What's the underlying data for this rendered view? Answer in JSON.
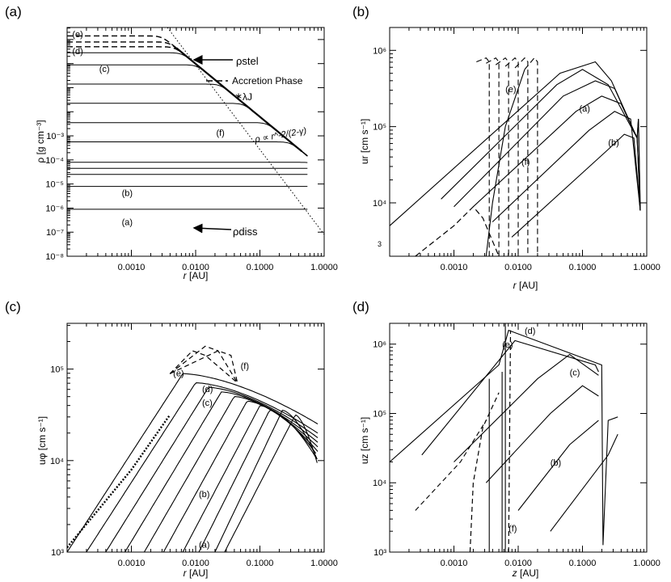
{
  "chart_data": [
    {
      "panel": "(a)",
      "type": "line",
      "xlabel": "r",
      "xunit": "[AU]",
      "ylabel": "ρ",
      "yunit": "[g cm⁻³]",
      "xlog": [
        -4,
        0
      ],
      "ylog": [
        -8,
        1.5
      ],
      "xticks": [
        "0.0010",
        "0.0100",
        "0.1000",
        "1.0000"
      ],
      "yticks": [
        [
          "10⁻⁸",
          -8
        ],
        [
          "10⁻⁷",
          -7
        ],
        [
          "10⁻⁶",
          -6
        ],
        [
          "10⁻⁵",
          -5
        ],
        [
          "10⁻⁴",
          -4
        ],
        [
          "10⁻³",
          -3
        ]
      ],
      "ann": [
        [
          "(e)",
          -3.92,
          1.1
        ],
        [
          "(d)",
          -3.92,
          0.4
        ],
        [
          "(c)",
          -3.5,
          -0.35
        ],
        [
          "(f)",
          -1.68,
          -3.0
        ],
        [
          "(b)",
          -3.15,
          -5.5
        ],
        [
          "(a)",
          -3.15,
          -6.7
        ]
      ],
      "labels": {
        "rho_stel": "ρstel",
        "accretion": "Accretion Phase",
        "lambda_j": "λJ",
        "rho_diss": "ρdiss",
        "powerlaw": "ρ ∝ r^-2/(2-γ)"
      },
      "series": [
        {
          "name": "(e)",
          "style": "dashed",
          "plateau": 1.15
        },
        {
          "name": "",
          "style": "dashed",
          "plateau": 0.9
        },
        {
          "name": "",
          "style": "dashed",
          "plateau": 0.7
        },
        {
          "name": "(d)",
          "style": "solid",
          "plateau": 0.45
        },
        {
          "name": "",
          "style": "solid",
          "plateau": -0.05
        },
        {
          "name": "(c)",
          "style": "solid",
          "plateau": -0.85
        },
        {
          "name": "",
          "style": "solid",
          "plateau": -1.65
        },
        {
          "name": "",
          "style": "solid",
          "plateau": -2.45
        },
        {
          "name": "",
          "style": "solid",
          "plateau": -3.25
        },
        {
          "name": "(b)",
          "style": "solid",
          "plateau": -4.1
        },
        {
          "name": "",
          "style": "solid",
          "plateau": -4.35
        },
        {
          "name": "",
          "style": "solid",
          "plateau": -4.6
        },
        {
          "name": "",
          "style": "solid",
          "plateau": -5.1
        },
        {
          "name": "(a)",
          "style": "solid",
          "plateau": -6.05
        }
      ]
    },
    {
      "panel": "(b)",
      "type": "line",
      "xlabel": "r",
      "xunit": "[AU]",
      "ylabel": "ur",
      "yunit": "[cm s⁻¹]",
      "xlog": [
        -4,
        0
      ],
      "ylog": [
        3.3,
        6.3
      ],
      "xticks": [
        "0.0010",
        "0.0100",
        "0.1000",
        "1.0000"
      ],
      "yticks": [
        [
          "10⁶",
          6
        ],
        [
          "10⁵",
          5
        ],
        [
          "10⁴",
          4
        ]
      ],
      "ymin_label": "3",
      "ann": [
        [
          "(e)",
          -2.2,
          5.45
        ],
        [
          "(f)",
          -1.95,
          4.5
        ],
        [
          "(a)",
          -1.05,
          5.2
        ],
        [
          "(b)",
          -0.6,
          4.75
        ]
      ],
      "series": [
        {
          "x": [
            -4,
            -1.35,
            -0.8,
            -0.55,
            -0.15,
            -0.13,
            -0.1
          ],
          "y": [
            3.7,
            5.7,
            5.85,
            5.6,
            4.85,
            5.1,
            3.9
          ]
        },
        {
          "x": [
            -3.2,
            -1.4,
            -1.0,
            -0.6,
            -0.15,
            -0.13,
            -0.1
          ],
          "y": [
            4.05,
            5.55,
            5.75,
            5.55,
            4.85,
            5.1,
            3.9
          ]
        },
        {
          "x": [
            -3.0,
            -1.3,
            -0.8,
            -0.5,
            -0.15,
            -0.1
          ],
          "y": [
            3.95,
            5.4,
            5.6,
            5.5,
            4.85,
            3.9
          ]
        },
        {
          "x": [
            -2.7,
            -1.1,
            -0.7,
            -0.4,
            -0.15,
            -0.1
          ],
          "y": [
            3.95,
            5.2,
            5.4,
            5.3,
            4.85,
            3.9
          ]
        },
        {
          "x": [
            -2.4,
            -0.9,
            -0.5,
            -0.25,
            -0.1
          ],
          "y": [
            3.75,
            4.95,
            5.2,
            5.1,
            3.9
          ]
        },
        {
          "x": [
            -2.1,
            -0.6,
            -0.35,
            -0.2,
            -0.1
          ],
          "y": [
            3.55,
            4.7,
            4.9,
            4.85,
            3.9
          ]
        }
      ]
    },
    {
      "panel": "(c)",
      "type": "line",
      "xlabel": "r",
      "xunit": "[AU]",
      "ylabel": "uφ",
      "yunit": "[cm s⁻¹]",
      "xlog": [
        -4,
        0
      ],
      "ylog": [
        3,
        5.5
      ],
      "xticks": [
        "0.0010",
        "0.0100",
        "0.1000",
        "1.0000"
      ],
      "yticks": [
        [
          "10⁵",
          5
        ],
        [
          "10⁴",
          4
        ],
        [
          "10³",
          3
        ]
      ],
      "ann": [
        [
          "(e)",
          -2.35,
          4.92
        ],
        [
          "(f)",
          -1.3,
          5.0
        ],
        [
          "(d)",
          -1.9,
          4.75
        ],
        [
          "(c)",
          -1.9,
          4.6
        ],
        [
          "(b)",
          -1.95,
          3.6
        ],
        [
          "(a)",
          -1.95,
          3.05
        ]
      ],
      "series": [
        {
          "x0": -4.0,
          "peak": [
            -2.2,
            4.95
          ]
        },
        {
          "x0": -3.7,
          "peak": [
            -2.0,
            4.85
          ]
        },
        {
          "x0": -3.4,
          "peak": [
            -1.8,
            4.8
          ]
        },
        {
          "x0": -3.1,
          "peak": [
            -1.6,
            4.75
          ]
        },
        {
          "x0": -2.8,
          "peak": [
            -1.4,
            4.7
          ]
        },
        {
          "x0": -2.5,
          "peak": [
            -1.2,
            4.65
          ]
        },
        {
          "x0": -2.2,
          "peak": [
            -1.0,
            4.6
          ]
        },
        {
          "x0": -1.95,
          "peak": [
            -0.85,
            4.55
          ]
        },
        {
          "x0": -1.7,
          "peak": [
            -0.65,
            4.55
          ]
        },
        {
          "x0": -1.55,
          "peak": [
            -0.45,
            4.5
          ]
        }
      ]
    },
    {
      "panel": "(d)",
      "type": "line",
      "xlabel": "z",
      "xunit": "[AU]",
      "ylabel": "uz",
      "yunit": "[cm s⁻¹]",
      "xlog": [
        -4,
        0
      ],
      "ylog": [
        3,
        6.3
      ],
      "xticks": [
        "0.0010",
        "0.0100",
        "0.1000",
        "1.0000"
      ],
      "yticks": [
        [
          "10⁶",
          6
        ],
        [
          "10⁵",
          5
        ],
        [
          "10⁴",
          4
        ],
        [
          "10³",
          3
        ]
      ],
      "ann": [
        [
          "(e)",
          -2.25,
          5.95
        ],
        [
          "(d)",
          -1.9,
          6.15
        ],
        [
          "(c)",
          -1.2,
          5.55
        ],
        [
          "(b)",
          -1.5,
          4.25
        ],
        [
          "(f)",
          -2.15,
          3.3
        ]
      ],
      "series": [
        {
          "x": [
            -4,
            -2.3,
            -2.15,
            -0.7,
            -0.68,
            -0.6,
            -0.45
          ],
          "y": [
            4.3,
            5.7,
            6.2,
            5.7,
            3.1,
            4.9,
            4.95
          ]
        },
        {
          "x": [
            -3.5,
            -2.05,
            -0.8,
            -0.75
          ],
          "y": [
            4.4,
            6.05,
            5.7,
            5.6
          ]
        },
        {
          "x": [
            -3.0,
            -1.7,
            -1.2,
            -0.75
          ],
          "y": [
            4.3,
            5.5,
            5.85,
            5.55
          ]
        },
        {
          "x": [
            -2.5,
            -1.5,
            -1.0,
            -0.75
          ],
          "y": [
            4.0,
            5.0,
            5.4,
            5.25
          ]
        },
        {
          "x": [
            -2.0,
            -1.2,
            -0.75
          ],
          "y": [
            3.6,
            4.55,
            4.9
          ]
        },
        {
          "x": [
            -1.5,
            -0.6,
            -0.45
          ],
          "y": [
            3.3,
            4.4,
            4.7
          ]
        }
      ]
    }
  ]
}
